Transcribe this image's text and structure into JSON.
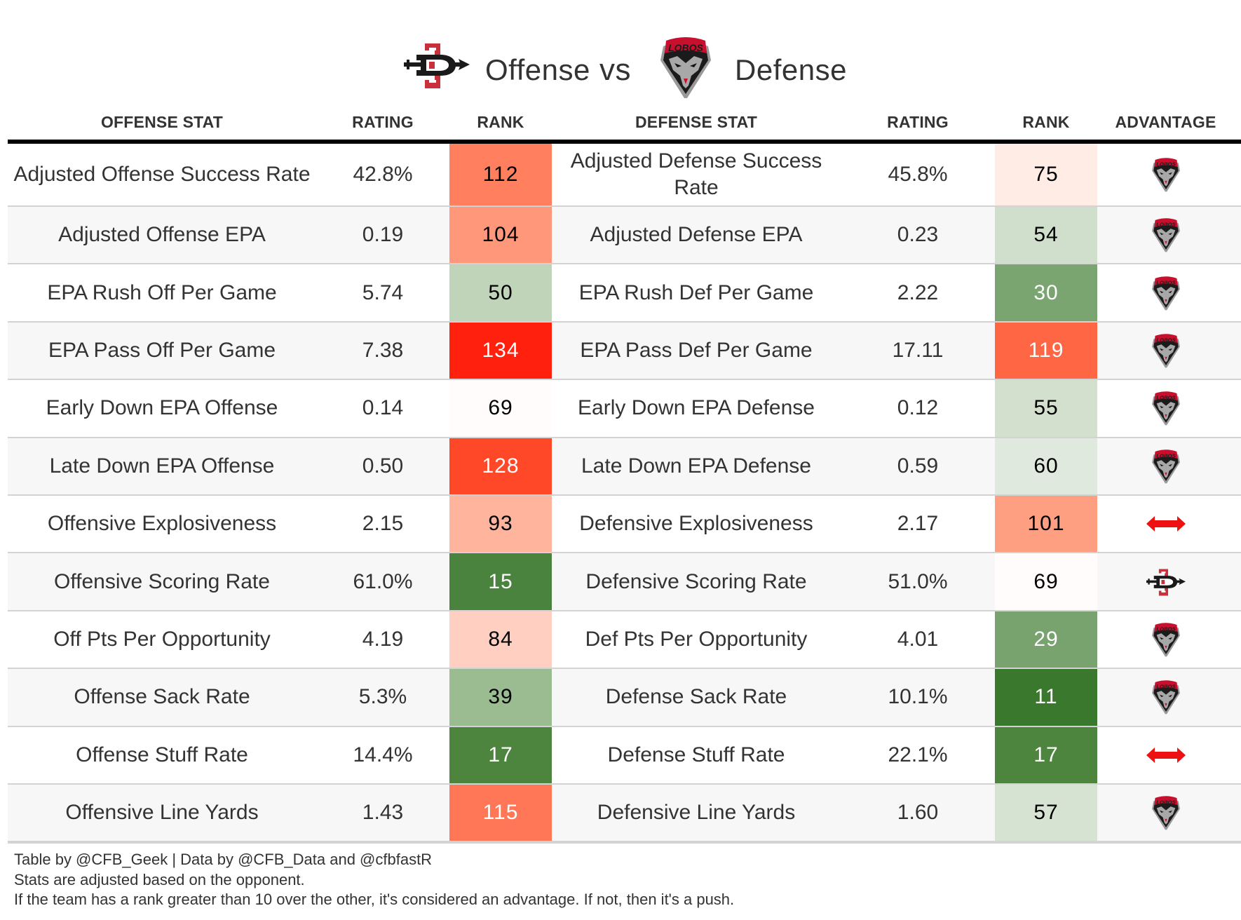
{
  "title": {
    "offense_team_logo": "sdsu-aztecs-logo",
    "offense_label": "Offense",
    "vs_label": "vs",
    "defense_team_logo": "unm-lobos-logo",
    "defense_label": "Defense"
  },
  "table": {
    "headers": [
      "OFFENSE STAT",
      "RATING",
      "RANK",
      "DEFENSE STAT",
      "RATING",
      "RANK",
      "ADVANTAGE"
    ],
    "rows": [
      {
        "off_stat": "Adjusted Offense Success Rate",
        "off_rating": "42.8%",
        "off_rank": "112",
        "off_rank_color": "#ff7f5e",
        "off_rank_text": "dark",
        "def_stat": "Adjusted Defense Success Rate",
        "def_rating": "45.8%",
        "def_rank": "75",
        "def_rank_color": "#ffece5",
        "def_rank_text": "dark",
        "advantage": "defense"
      },
      {
        "off_stat": "Adjusted Offense EPA",
        "off_rating": "0.19",
        "off_rank": "104",
        "off_rank_color": "#ff987b",
        "off_rank_text": "dark",
        "def_stat": "Adjusted Defense EPA",
        "def_rating": "0.23",
        "def_rank": "54",
        "def_rank_color": "#d0dfcb",
        "def_rank_text": "dark",
        "advantage": "defense"
      },
      {
        "off_stat": "EPA Rush Off Per Game",
        "off_rating": "5.74",
        "off_rank": "50",
        "off_rank_color": "#c0d4ba",
        "off_rank_text": "dark",
        "def_stat": "EPA Rush Def Per Game",
        "def_rating": "2.22",
        "def_rank": "30",
        "def_rank_color": "#7aa570",
        "def_rank_text": "light",
        "advantage": "defense"
      },
      {
        "off_stat": "EPA Pass Off Per Game",
        "off_rating": "7.38",
        "off_rank": "134",
        "off_rank_color": "#ff200e",
        "off_rank_text": "light",
        "def_stat": "EPA Pass Def Per Game",
        "def_rating": "17.11",
        "def_rank": "119",
        "def_rank_color": "#ff6644",
        "def_rank_text": "light",
        "advantage": "defense"
      },
      {
        "off_stat": "Early Down EPA Offense",
        "off_rating": "0.14",
        "off_rank": "69",
        "off_rank_color": "#fffcfb",
        "off_rank_text": "dark",
        "def_stat": "Early Down EPA Defense",
        "def_rating": "0.12",
        "def_rank": "55",
        "def_rank_color": "#d2e0cd",
        "def_rank_text": "dark",
        "advantage": "defense"
      },
      {
        "off_stat": "Late Down EPA Offense",
        "off_rating": "0.50",
        "off_rank": "128",
        "off_rank_color": "#ff4828",
        "off_rank_text": "light",
        "def_stat": "Late Down EPA Defense",
        "def_rating": "0.59",
        "def_rank": "60",
        "def_rank_color": "#e0e9dd",
        "def_rank_text": "dark",
        "advantage": "defense"
      },
      {
        "off_stat": "Offensive Explosiveness",
        "off_rating": "2.15",
        "off_rank": "93",
        "off_rank_color": "#ffb49e",
        "off_rank_text": "dark",
        "def_stat": "Defensive Explosiveness",
        "def_rating": "2.17",
        "def_rank": "101",
        "def_rank_color": "#ff9f82",
        "def_rank_text": "dark",
        "advantage": "push"
      },
      {
        "off_stat": "Offensive Scoring Rate",
        "off_rating": "61.0%",
        "off_rank": "15",
        "off_rank_color": "#4a833d",
        "off_rank_text": "light",
        "def_stat": "Defensive Scoring Rate",
        "def_rating": "51.0%",
        "def_rank": "69",
        "def_rank_color": "#fffcfb",
        "def_rank_text": "dark",
        "advantage": "offense"
      },
      {
        "off_stat": "Off Pts Per Opportunity",
        "off_rating": "4.19",
        "off_rank": "84",
        "off_rank_color": "#ffd0c2",
        "off_rank_text": "dark",
        "def_stat": "Def Pts Per Opportunity",
        "def_rating": "4.01",
        "def_rank": "29",
        "def_rank_color": "#78a36e",
        "def_rank_text": "light",
        "advantage": "defense"
      },
      {
        "off_stat": "Offense Sack Rate",
        "off_rating": "5.3%",
        "off_rank": "39",
        "off_rank_color": "#9bbb91",
        "off_rank_text": "dark",
        "def_stat": "Defense Sack Rate",
        "def_rating": "10.1%",
        "def_rank": "11",
        "def_rank_color": "#3a782d",
        "def_rank_text": "light",
        "advantage": "defense"
      },
      {
        "off_stat": "Offense Stuff Rate",
        "off_rating": "14.4%",
        "off_rank": "17",
        "off_rank_color": "#4d853f",
        "off_rank_text": "light",
        "def_stat": "Defense Stuff Rate",
        "def_rating": "22.1%",
        "def_rank": "17",
        "def_rank_color": "#4d853f",
        "def_rank_text": "light",
        "advantage": "push"
      },
      {
        "off_stat": "Offensive Line Yards",
        "off_rating": "1.43",
        "off_rank": "115",
        "off_rank_color": "#ff7756",
        "off_rank_text": "light",
        "def_stat": "Defensive Line Yards",
        "def_rating": "1.60",
        "def_rank": "57",
        "def_rank_color": "#d7e3d2",
        "def_rank_text": "dark",
        "advantage": "defense"
      }
    ]
  },
  "advantage_icons": {
    "offense": "sdsu-logo-icon",
    "defense": "lobos-logo-icon",
    "push": "push-arrow-icon"
  },
  "colors": {
    "push_arrow": "#ee1111",
    "sdsu_red": "#c8303a",
    "sdsu_black": "#1a1a1a",
    "lobos_red": "#c8102e"
  },
  "footer": {
    "line1": "Table by @CFB_Geek | Data by @CFB_Data and @cfbfastR",
    "line2": "Stats are adjusted based on the opponent.",
    "line3": "If the team has a rank greater than 10 over the other, it's considered an advantage. If not, then it's a push."
  }
}
